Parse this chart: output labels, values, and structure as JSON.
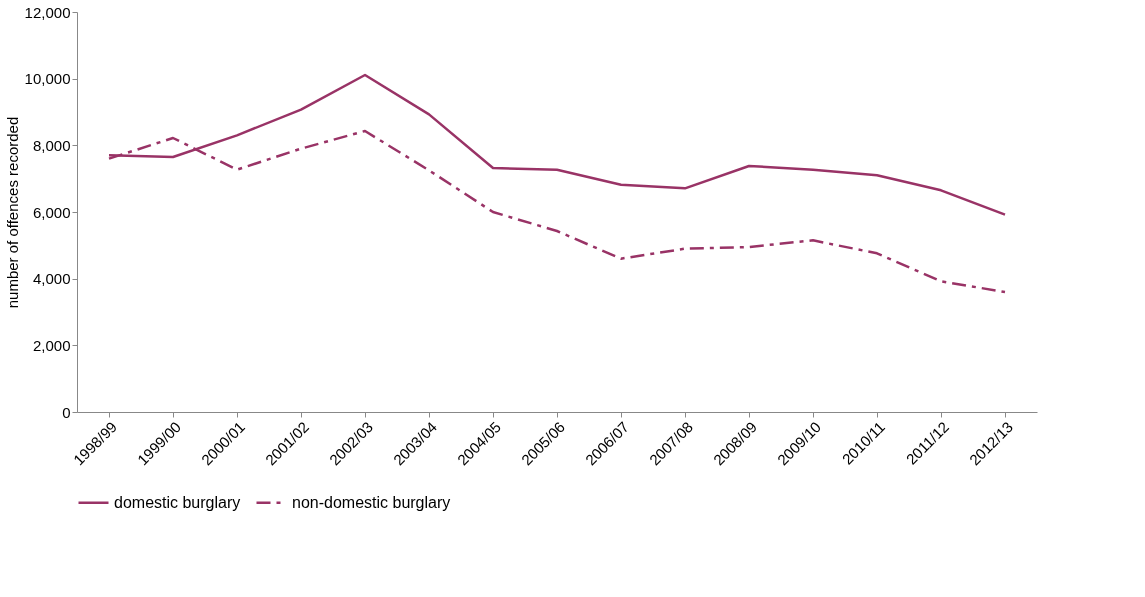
{
  "chart_data": {
    "type": "line",
    "ylabel": "number of offences recorded",
    "categories": [
      "1998/99",
      "1999/00",
      "2000/01",
      "2001/02",
      "2002/03",
      "2003/04",
      "2004/05",
      "2005/06",
      "2006/07",
      "2007/08",
      "2008/09",
      "2009/10",
      "2010/11",
      "2011/12",
      "2012/13"
    ],
    "series": [
      {
        "name": "domestic burglary",
        "color": "#993366",
        "line_style": "solid",
        "values": [
          7700,
          7650,
          8300,
          9070,
          10110,
          8930,
          7320,
          7270,
          6820,
          6710,
          7380,
          7270,
          7100,
          6650,
          5920
        ]
      },
      {
        "name": "non-domestic burglary",
        "color": "#993366",
        "line_style": "dashed",
        "values": [
          7600,
          8220,
          7270,
          7900,
          8430,
          7250,
          6000,
          5430,
          4600,
          4900,
          4950,
          5150,
          4760,
          3920,
          3600
        ]
      }
    ],
    "ylim": [
      0,
      12000
    ],
    "yticks": [
      0,
      {
        "value": 2000,
        "label": "2,000"
      },
      {
        "value": 4000,
        "label": "4,000"
      },
      {
        "value": 6000,
        "label": "6,000"
      },
      {
        "value": 8000,
        "label": "8,000"
      },
      {
        "value": 10000,
        "label": "10,000"
      },
      {
        "value": 12000,
        "label": "12,000"
      }
    ],
    "grid": false,
    "legend": "bottom",
    "marker": "none"
  }
}
